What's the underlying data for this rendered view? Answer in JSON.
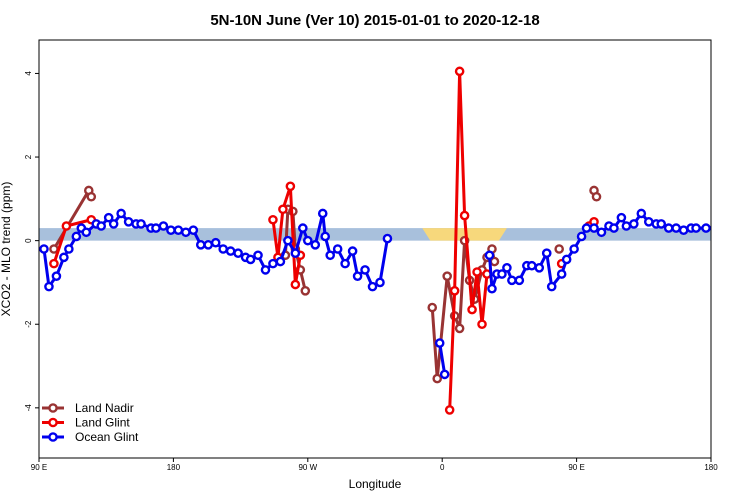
{
  "chart_data": {
    "type": "line",
    "title": "5N-10N June (Ver 10)   2015-01-01 to 2020-12-18",
    "xlabel": "Longitude",
    "ylabel": "XCO2 - MLO trend (ppm)",
    "xlim": [
      -90,
      180
    ],
    "ylim": [
      -5.2,
      4.8
    ],
    "x_ticks": [
      {
        "value": -90,
        "label": "90 E"
      },
      {
        "value": -36,
        "label": "180"
      },
      {
        "value": 18,
        "label": "90 W"
      },
      {
        "value": 72,
        "label": "0"
      },
      {
        "value": 126,
        "label": "90 E"
      },
      {
        "value": 180,
        "label": "180"
      }
    ],
    "y_ticks": [
      -4,
      -2,
      0,
      2,
      4
    ],
    "band": {
      "lower": 0.0,
      "upper": 0.3,
      "color": "#a8c0dc",
      "land_color": "#f7d87c",
      "land_segments": [
        [
          64,
          98
        ]
      ]
    },
    "legend_position": "bottom-left",
    "series": [
      {
        "name": "Land Nadir",
        "color": "#993333",
        "segments": [
          [
            [
              -84,
              -0.2
            ],
            [
              -70,
              1.2
            ],
            [
              -69,
              1.05
            ]
          ],
          [
            [
              9,
              -0.35
            ],
            [
              10,
              0.75
            ],
            [
              12,
              0.7
            ],
            [
              13,
              -0.2
            ],
            [
              15,
              -0.7
            ],
            [
              17,
              -1.2
            ]
          ],
          [
            [
              68,
              -1.6
            ],
            [
              70,
              -3.3
            ],
            [
              74,
              -0.85
            ],
            [
              77,
              -1.8
            ],
            [
              79,
              -2.1
            ],
            [
              81,
              0.0
            ],
            [
              83,
              -0.95
            ],
            [
              85,
              -1.4
            ],
            [
              88,
              -0.7
            ],
            [
              90,
              -0.4
            ],
            [
              92,
              -0.2
            ],
            [
              93,
              -0.5
            ]
          ],
          [
            [
              119,
              -0.2
            ]
          ],
          [
            [
              133,
              1.2
            ],
            [
              134,
              1.05
            ]
          ]
        ]
      },
      {
        "name": "Land Glint",
        "color": "#ee0000",
        "segments": [
          [
            [
              -84,
              -0.55
            ],
            [
              -79,
              0.35
            ],
            [
              -69,
              0.5
            ]
          ],
          [
            [
              4,
              0.5
            ],
            [
              6,
              -0.4
            ],
            [
              8,
              0.75
            ],
            [
              11,
              1.3
            ],
            [
              13,
              -1.05
            ],
            [
              15,
              -0.35
            ]
          ],
          [
            [
              75,
              -4.05
            ],
            [
              77,
              -1.2
            ],
            [
              79,
              4.05
            ],
            [
              81,
              0.6
            ],
            [
              84,
              -1.65
            ],
            [
              86,
              -0.75
            ],
            [
              88,
              -2.0
            ],
            [
              90,
              -0.8
            ]
          ],
          [
            [
              120,
              -0.55
            ]
          ],
          [
            [
              131,
              0.35
            ],
            [
              133,
              0.45
            ]
          ]
        ]
      },
      {
        "name": "Ocean Glint",
        "color": "#0000ee",
        "segments": [
          [
            [
              -88,
              -0.2
            ],
            [
              -86,
              -1.1
            ],
            [
              -83,
              -0.85
            ],
            [
              -80,
              -0.4
            ],
            [
              -78,
              -0.2
            ],
            [
              -75,
              0.1
            ],
            [
              -73,
              0.3
            ],
            [
              -71,
              0.2
            ],
            [
              -67,
              0.4
            ],
            [
              -65,
              0.35
            ],
            [
              -62,
              0.55
            ],
            [
              -60,
              0.4
            ],
            [
              -57,
              0.65
            ],
            [
              -54,
              0.45
            ],
            [
              -51,
              0.4
            ],
            [
              -49,
              0.4
            ],
            [
              -45,
              0.3
            ],
            [
              -43,
              0.3
            ],
            [
              -40,
              0.35
            ],
            [
              -37,
              0.25
            ],
            [
              -34,
              0.25
            ],
            [
              -31,
              0.2
            ],
            [
              -28,
              0.25
            ],
            [
              -25,
              -0.1
            ],
            [
              -22,
              -0.1
            ],
            [
              -19,
              -0.05
            ],
            [
              -16,
              -0.2
            ],
            [
              -13,
              -0.25
            ],
            [
              -10,
              -0.3
            ],
            [
              -7,
              -0.4
            ],
            [
              -5,
              -0.45
            ],
            [
              -2,
              -0.35
            ],
            [
              1,
              -0.7
            ],
            [
              4,
              -0.55
            ],
            [
              7,
              -0.5
            ],
            [
              10,
              0.0
            ],
            [
              13,
              -0.3
            ],
            [
              16,
              0.3
            ],
            [
              18,
              0.0
            ],
            [
              21,
              -0.1
            ],
            [
              24,
              0.65
            ],
            [
              25,
              0.1
            ],
            [
              27,
              -0.35
            ],
            [
              30,
              -0.2
            ],
            [
              33,
              -0.55
            ],
            [
              36,
              -0.25
            ],
            [
              38,
              -0.85
            ],
            [
              41,
              -0.7
            ],
            [
              44,
              -1.1
            ],
            [
              47,
              -1.0
            ],
            [
              50,
              0.05
            ]
          ],
          [
            [
              71,
              -2.45
            ],
            [
              73,
              -3.2
            ]
          ],
          [
            [
              91,
              -0.35
            ],
            [
              92,
              -1.15
            ],
            [
              94,
              -0.8
            ],
            [
              96,
              -0.8
            ],
            [
              98,
              -0.65
            ],
            [
              100,
              -0.95
            ],
            [
              103,
              -0.95
            ],
            [
              106,
              -0.6
            ],
            [
              108,
              -0.6
            ],
            [
              111,
              -0.65
            ],
            [
              114,
              -0.3
            ],
            [
              116,
              -1.1
            ],
            [
              120,
              -0.8
            ],
            [
              122,
              -0.45
            ],
            [
              125,
              -0.2
            ],
            [
              128,
              0.1
            ],
            [
              130,
              0.3
            ],
            [
              133,
              0.3
            ],
            [
              136,
              0.2
            ],
            [
              139,
              0.35
            ],
            [
              141,
              0.3
            ],
            [
              144,
              0.55
            ],
            [
              146,
              0.35
            ],
            [
              149,
              0.4
            ],
            [
              152,
              0.65
            ],
            [
              155,
              0.45
            ],
            [
              158,
              0.4
            ],
            [
              160,
              0.4
            ],
            [
              163,
              0.3
            ],
            [
              166,
              0.3
            ],
            [
              169,
              0.25
            ],
            [
              172,
              0.3
            ],
            [
              174,
              0.3
            ],
            [
              178,
              0.3
            ]
          ]
        ]
      }
    ]
  }
}
